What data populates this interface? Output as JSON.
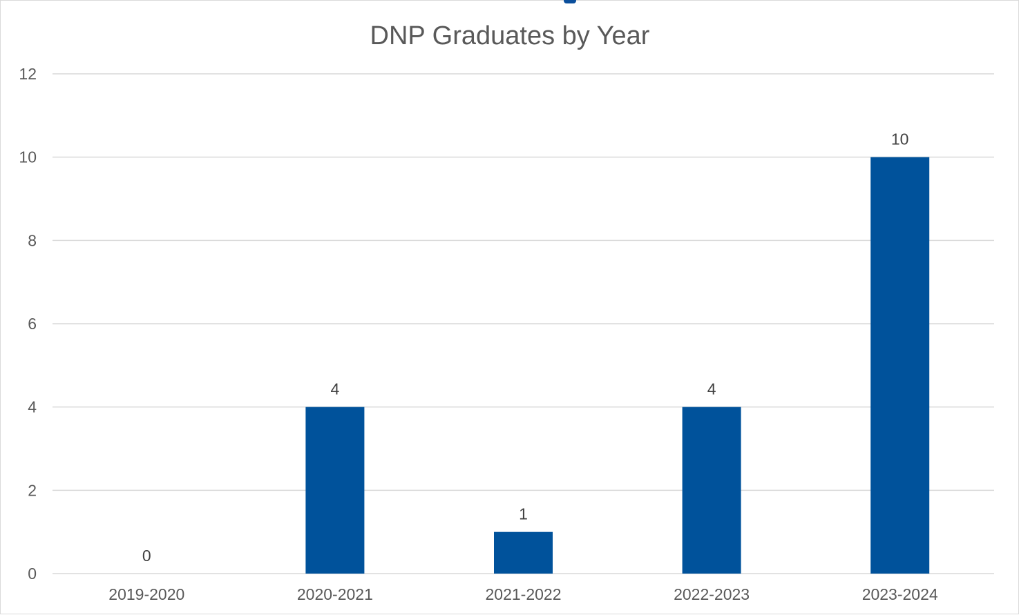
{
  "chart_data": {
    "type": "bar",
    "title": "DNP Graduates by Year",
    "xlabel": "",
    "ylabel": "",
    "categories": [
      "2019-2020",
      "2020-2021",
      "2021-2022",
      "2022-2023",
      "2023-2024"
    ],
    "values": [
      0,
      4,
      1,
      4,
      10
    ],
    "data_labels": [
      "0",
      "4",
      "1",
      "4",
      "10"
    ],
    "ylim": [
      0,
      12
    ],
    "yticks": [
      0,
      2,
      4,
      6,
      8,
      10,
      12
    ],
    "grid": true,
    "legend": "none",
    "bar_color": "#00529B",
    "gridline_color": "#D9D9D9",
    "text_color": "#595959"
  }
}
